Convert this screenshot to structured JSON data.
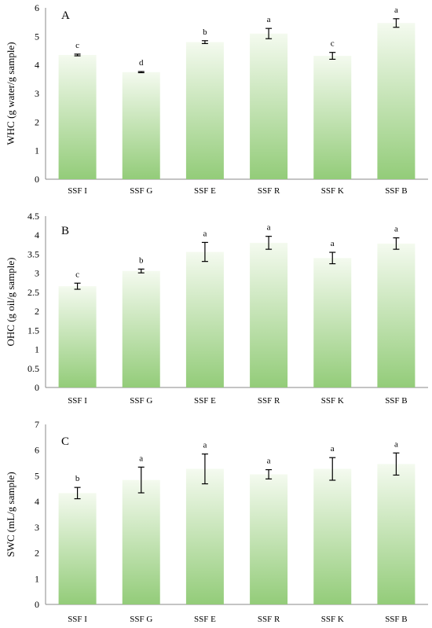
{
  "bar_colors": {
    "top": "#f4faef",
    "bottom": "#93cc79"
  },
  "chart_data": [
    {
      "type": "bar",
      "panel_label": "A",
      "title": "",
      "xlabel": "",
      "ylabel": "WHC (g water/g sample)",
      "ylim": [
        0,
        6
      ],
      "yticks": [
        "0",
        "1",
        "2",
        "3",
        "4",
        "5",
        "6"
      ],
      "categories": [
        "SSF I",
        "SSF G",
        "SSF E",
        "SSF R",
        "SSF K",
        "SSF B"
      ],
      "values": [
        4.35,
        3.75,
        4.8,
        5.1,
        4.32,
        5.47
      ],
      "errors": [
        0.03,
        0.02,
        0.05,
        0.18,
        0.12,
        0.15
      ],
      "letters": [
        "c",
        "d",
        "b",
        "a",
        "c",
        "a"
      ],
      "grid": false,
      "legend": "none"
    },
    {
      "type": "bar",
      "panel_label": "B",
      "title": "",
      "xlabel": "",
      "ylabel": "OHC (g oil/g sample)",
      "ylim": [
        0,
        4.5
      ],
      "yticks": [
        "0",
        "0.5",
        "1",
        "1.5",
        "2",
        "2.5",
        "3",
        "3.5",
        "4",
        "4.5"
      ],
      "categories": [
        "SSF I",
        "SSF G",
        "SSF E",
        "SSF R",
        "SSF K",
        "SSF B"
      ],
      "values": [
        2.66,
        3.06,
        3.56,
        3.8,
        3.4,
        3.78
      ],
      "errors": [
        0.08,
        0.05,
        0.25,
        0.17,
        0.15,
        0.15
      ],
      "letters": [
        "c",
        "b",
        "a",
        "a",
        "a",
        "a"
      ],
      "grid": false,
      "legend": "none"
    },
    {
      "type": "bar",
      "panel_label": "C",
      "title": "",
      "xlabel": "",
      "ylabel": "SWC (mL/g sample)",
      "ylim": [
        0,
        7
      ],
      "yticks": [
        "0",
        "1",
        "2",
        "3",
        "4",
        "5",
        "6",
        "7"
      ],
      "categories": [
        "SSF I",
        "SSF G",
        "SSF E",
        "SSF R",
        "SSF K",
        "SSF B"
      ],
      "values": [
        4.33,
        4.84,
        5.27,
        5.06,
        5.27,
        5.46
      ],
      "errors": [
        0.22,
        0.5,
        0.58,
        0.18,
        0.44,
        0.43
      ],
      "letters": [
        "b",
        "a",
        "a",
        "a",
        "a",
        "a"
      ],
      "grid": false,
      "legend": "none"
    }
  ]
}
